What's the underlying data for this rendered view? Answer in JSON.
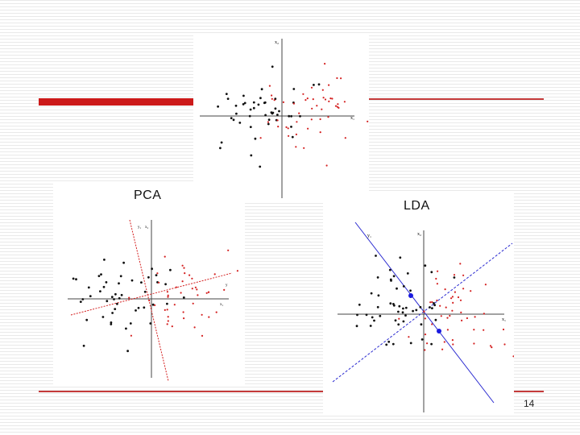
{
  "slide": {
    "pca_label": "PCA",
    "lda_label": "LDA",
    "page_number": "14"
  },
  "colors": {
    "accent_bar": "#cc1a1a",
    "accent_line": "#c43a3a",
    "class_black": "#111111",
    "class_red": "#d42020",
    "pca_axis": "#d42020",
    "lda_axis": "#2a2ad0",
    "lda_mean": "#1a1ae0"
  },
  "plots": {
    "top": {
      "axis_labels": [
        "x₂",
        "x₁"
      ]
    },
    "pca": {
      "axis_labels": [
        "x₂",
        "x₁",
        "y₁",
        "y"
      ]
    },
    "lda": {
      "axis_labels": [
        "x₂",
        "x₁",
        "y₁"
      ]
    }
  }
}
